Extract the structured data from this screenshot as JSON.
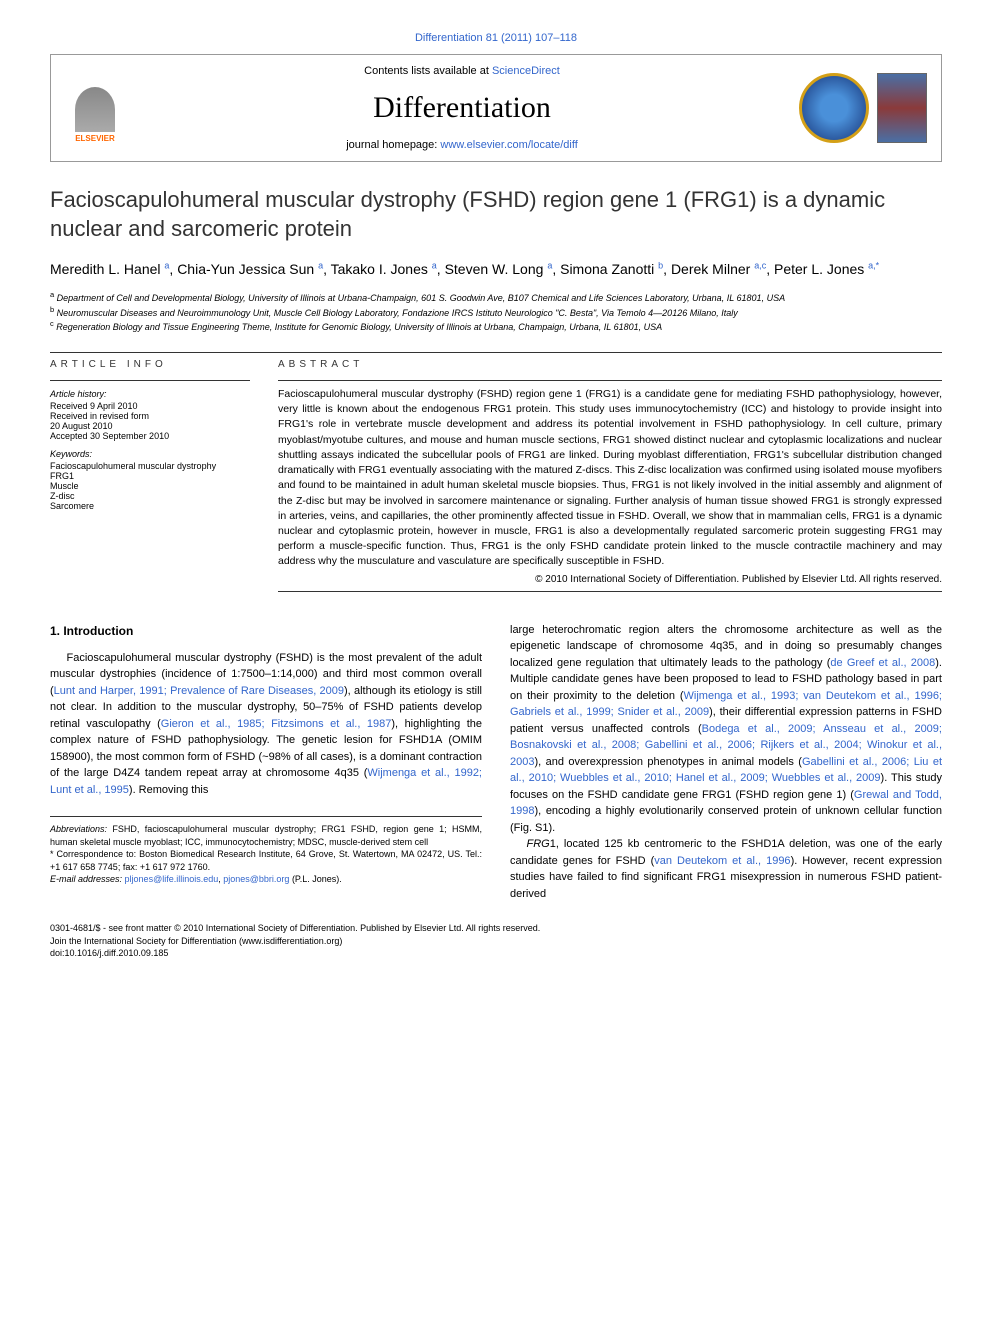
{
  "top_link": "Differentiation 81 (2011) 107–118",
  "header": {
    "contents_prefix": "Contents lists available at ",
    "contents_link": "ScienceDirect",
    "journal_name": "Differentiation",
    "homepage_prefix": "journal homepage: ",
    "homepage_url": "www.elsevier.com/locate/diff",
    "elsevier_label": "ELSEVIER"
  },
  "title": "Facioscapulohumeral muscular dystrophy (FSHD) region gene 1 (FRG1) is a dynamic nuclear and sarcomeric protein",
  "authors_html": "Meredith L. Hanel <sup>a</sup>, Chia-Yun Jessica Sun <sup>a</sup>, Takako I. Jones <sup>a</sup>, Steven W. Long <sup>a</sup>, Simona Zanotti <sup>b</sup>, Derek Milner <sup>a,c</sup>, Peter L. Jones <sup>a,*</sup>",
  "affiliations": [
    {
      "sup": "a",
      "text": "Department of Cell and Developmental Biology, University of Illinois at Urbana-Champaign, 601 S. Goodwin Ave, B107 Chemical and Life Sciences Laboratory, Urbana, IL 61801, USA"
    },
    {
      "sup": "b",
      "text": "Neuromuscular Diseases and Neuroimmunology Unit, Muscle Cell Biology Laboratory, Fondazione IRCS Istituto Neurologico \"C. Besta\", Via Temolo 4—20126 Milano, Italy"
    },
    {
      "sup": "c",
      "text": "Regeneration Biology and Tissue Engineering Theme, Institute for Genomic Biology, University of Illinois at Urbana, Champaign, Urbana, IL 61801, USA"
    }
  ],
  "article_info": {
    "heading": "ARTICLE INFO",
    "history_label": "Article history:",
    "history": [
      "Received 9 April 2010",
      "Received in revised form",
      "20 August 2010",
      "Accepted 30 September 2010"
    ],
    "keywords_label": "Keywords:",
    "keywords": [
      "Facioscapulohumeral muscular dystrophy",
      "FRG1",
      "Muscle",
      "Z-disc",
      "Sarcomere"
    ]
  },
  "abstract": {
    "heading": "ABSTRACT",
    "text": "Facioscapulohumeral muscular dystrophy (FSHD) region gene 1 (FRG1) is a candidate gene for mediating FSHD pathophysiology, however, very little is known about the endogenous FRG1 protein. This study uses immunocytochemistry (ICC) and histology to provide insight into FRG1's role in vertebrate muscle development and address its potential involvement in FSHD pathophysiology. In cell culture, primary myoblast/myotube cultures, and mouse and human muscle sections, FRG1 showed distinct nuclear and cytoplasmic localizations and nuclear shuttling assays indicated the subcellular pools of FRG1 are linked. During myoblast differentiation, FRG1's subcellular distribution changed dramatically with FRG1 eventually associating with the matured Z-discs. This Z-disc localization was confirmed using isolated mouse myofibers and found to be maintained in adult human skeletal muscle biopsies. Thus, FRG1 is not likely involved in the initial assembly and alignment of the Z-disc but may be involved in sarcomere maintenance or signaling. Further analysis of human tissue showed FRG1 is strongly expressed in arteries, veins, and capillaries, the other prominently affected tissue in FSHD. Overall, we show that in mammalian cells, FRG1 is a dynamic nuclear and cytoplasmic protein, however in muscle, FRG1 is also a developmentally regulated sarcomeric protein suggesting FRG1 may perform a muscle-specific function. Thus, FRG1 is the only FSHD candidate protein linked to the muscle contractile machinery and may address why the musculature and vasculature are specifically susceptible in FSHD.",
    "copyright": "© 2010 International Society of Differentiation. Published by Elsevier Ltd. All rights reserved."
  },
  "section1": {
    "heading": "1. Introduction",
    "col1_p1_pre": "Facioscapulohumeral muscular dystrophy (FSHD) is the most prevalent of the adult muscular dystrophies (incidence of 1:7500–1:14,000) and third most common overall (",
    "col1_cite1": "Lunt and Harper, 1991; Prevalence of Rare Diseases, 2009",
    "col1_p1_mid1": "), although its etiology is still not clear. In addition to the muscular dystrophy, 50–75% of FSHD patients develop retinal vasculopathy (",
    "col1_cite2": "Gieron et al., 1985; Fitzsimons et al., 1987",
    "col1_p1_mid2": "), highlighting the complex nature of FSHD pathophysiology. The genetic lesion for FSHD1A (OMIM 158900), the most common form of FSHD (~98% of all cases), is a dominant contraction of the large D4Z4 tandem repeat array at chromosome 4q35 (",
    "col1_cite3": "Wijmenga et al., 1992; Lunt et al., 1995",
    "col1_p1_end": "). Removing this",
    "col2_p1_pre": "large heterochromatic region alters the chromosome architecture as well as the epigenetic landscape of chromosome 4q35, and in doing so presumably changes localized gene regulation that ultimately leads to the pathology (",
    "col2_cite1": "de Greef et al., 2008",
    "col2_p1_mid1": "). Multiple candidate genes have been proposed to lead to FSHD pathology based in part on their proximity to the deletion (",
    "col2_cite2": "Wijmenga et al., 1993; van Deutekom et al., 1996; Gabriels et al., 1999; Snider et al., 2009",
    "col2_p1_mid2": "), their differential expression patterns in FSHD patient versus unaffected controls (",
    "col2_cite3": "Bodega et al., 2009; Ansseau et al., 2009; Bosnakovski et al., 2008; Gabellini et al., 2006; Rijkers et al., 2004; Winokur et al., 2003",
    "col2_p1_mid3": "), and overexpression phenotypes in animal models (",
    "col2_cite4": "Gabellini et al., 2006; Liu et al., 2010; Wuebbles et al., 2010; Hanel et al., 2009; Wuebbles et al., 2009",
    "col2_p1_mid4": "). This study focuses on the FSHD candidate gene FRG1 (FSHD region gene 1) (",
    "col2_cite5": "Grewal and Todd, 1998",
    "col2_p1_end": "), encoding a highly evolutionarily conserved protein of unknown cellular function (Fig. S1).",
    "col2_p2_pre": "FRG1, located 125 kb centromeric to the FSHD1A deletion, was one of the early candidate genes for FSHD (",
    "col2_cite6": "van Deutekom et al., 1996",
    "col2_p2_end": "). However, recent expression studies have failed to find significant FRG1 misexpression in numerous FSHD patient-derived"
  },
  "footnotes": {
    "abbrev_label": "Abbreviations:",
    "abbrev_text": " FSHD, facioscapulohumeral muscular dystrophy; FRG1 FSHD, region gene 1; HSMM, human skeletal muscle myoblast; ICC, immunocytochemistry; MDSC, muscle-derived stem cell",
    "corr_label": "* Correspondence to:",
    "corr_text": " Boston Biomedical Research Institute, 64 Grove, St. Watertown, MA 02472, US. Tel.: +1 617 658 7745; fax: +1 617 972 1760.",
    "email_label": "E-mail addresses:",
    "email1": "pljones@life.illinois.edu",
    "email_mid": ", ",
    "email2": "pjones@bbri.org",
    "email_suffix": " (P.L. Jones)."
  },
  "footer": {
    "line1": "0301-4681/$ - see front matter © 2010 International Society of Differentiation. Published by Elsevier Ltd. All rights reserved.",
    "line2": "Join the International Society for Differentiation (www.isdifferentiation.org)",
    "line3": "doi:10.1016/j.diff.2010.09.185"
  },
  "colors": {
    "link": "#3366cc",
    "text": "#000000",
    "elsevier_orange": "#ff6600"
  }
}
